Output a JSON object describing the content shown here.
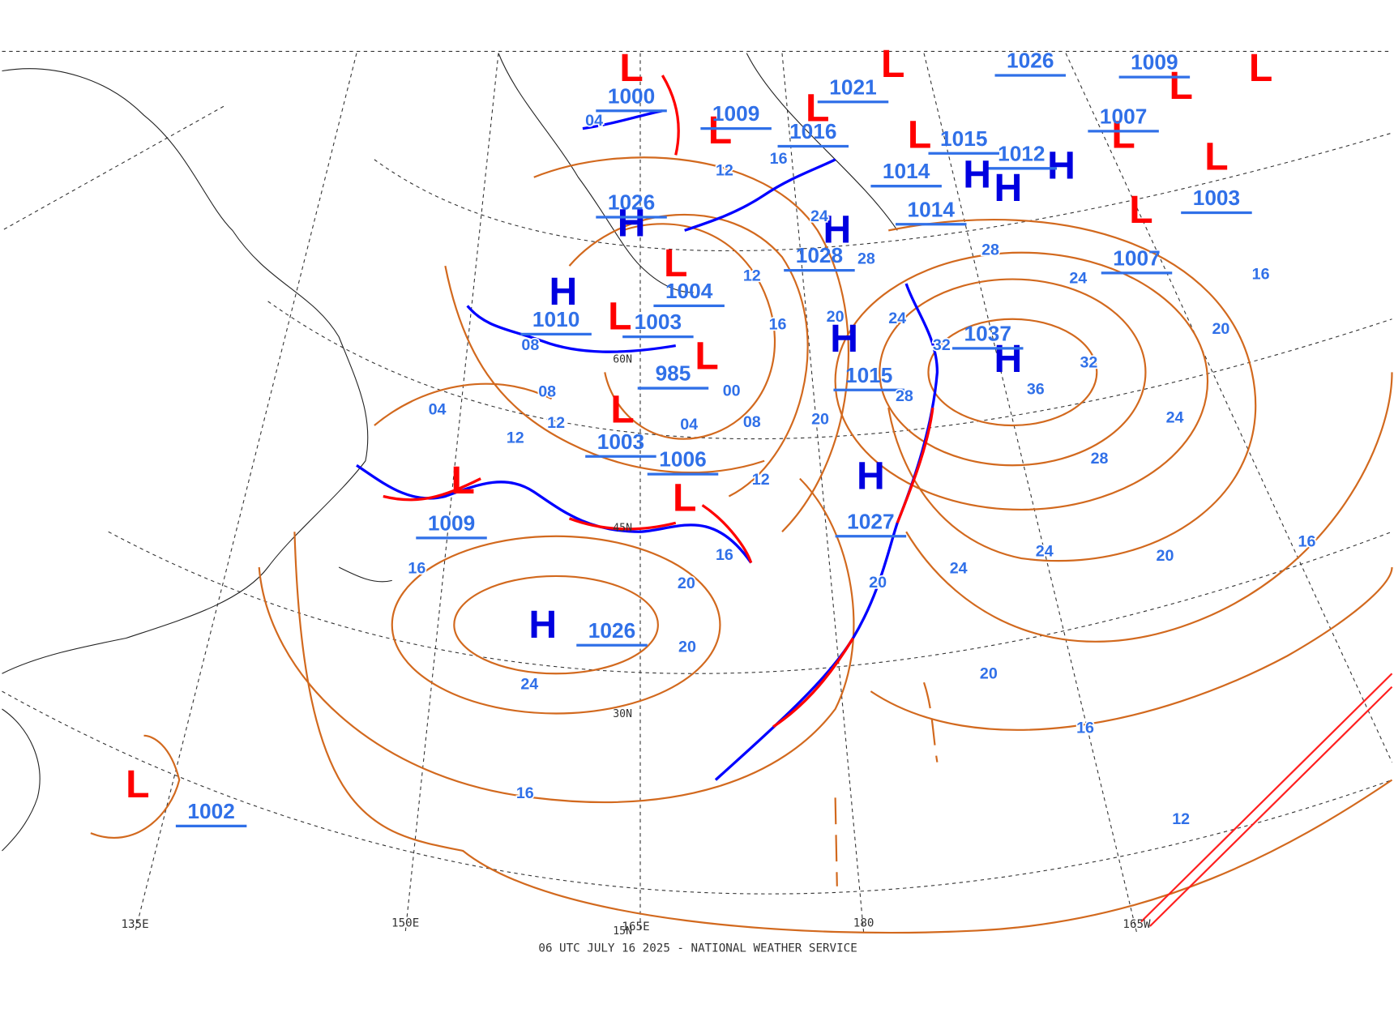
{
  "map": {
    "footer": "06 UTC JULY 16 2025 - NATIONAL WEATHER SERVICE",
    "longitude_labels": [
      "135E",
      "150E",
      "165E",
      "180",
      "165W"
    ],
    "latitude_labels": [
      "60N",
      "45N",
      "30N",
      "15N"
    ],
    "pressure_centers": [
      {
        "symbol": "L",
        "value": "1000"
      },
      {
        "symbol": "H",
        "value": "1026"
      },
      {
        "symbol": "L",
        "value": "1009"
      },
      {
        "symbol": "L",
        "value": "1016"
      },
      {
        "symbol": "L",
        "value": "1021"
      },
      {
        "symbol": "H",
        "value": "1014"
      },
      {
        "symbol": "L",
        "value": "1015"
      },
      {
        "symbol": "L",
        "value": "1026"
      },
      {
        "symbol": "L",
        "value": "1009"
      },
      {
        "symbol": "H",
        "value": "1012"
      },
      {
        "symbol": "H",
        "value": "1028"
      },
      {
        "symbol": "L",
        "value": "1004"
      },
      {
        "symbol": "H",
        "value": "1010"
      },
      {
        "symbol": "L",
        "value": "1003"
      },
      {
        "symbol": "L",
        "value": "985"
      },
      {
        "symbol": "H",
        "value": "1015"
      },
      {
        "symbol": "H",
        "value": "1037"
      },
      {
        "symbol": "H",
        "value": "1027"
      },
      {
        "symbol": "L",
        "value": "1006"
      },
      {
        "symbol": "L",
        "value": "1003"
      },
      {
        "symbol": "L",
        "value": "1009"
      },
      {
        "symbol": "H",
        "value": "1026"
      },
      {
        "symbol": "L",
        "value": "1002"
      },
      {
        "symbol": "L",
        "value": "1007"
      },
      {
        "symbol": "L",
        "value": "1003"
      },
      {
        "symbol": "H",
        "value": "1014"
      },
      {
        "symbol": "L",
        "value": "1007"
      }
    ],
    "isobar_labels": [
      "04",
      "12",
      "16",
      "24",
      "28",
      "12",
      "16",
      "20",
      "24",
      "32",
      "08",
      "08",
      "04",
      "12",
      "12",
      "04",
      "08",
      "00",
      "20",
      "28",
      "32",
      "36",
      "28",
      "24",
      "20",
      "16",
      "12",
      "16",
      "16",
      "20",
      "20",
      "24",
      "20",
      "24",
      "24",
      "20",
      "16",
      "20",
      "16",
      "16",
      "12",
      "28",
      "24"
    ]
  }
}
